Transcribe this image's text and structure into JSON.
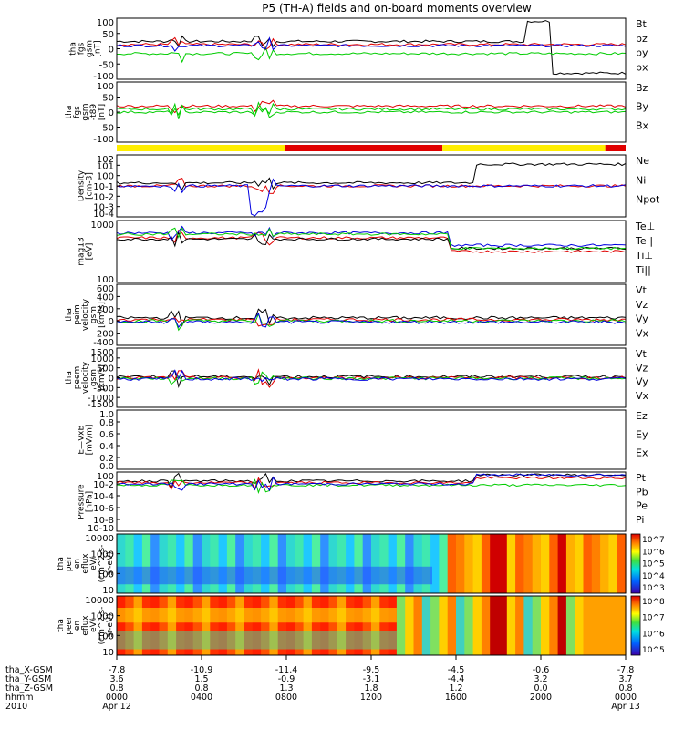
{
  "title": "P5 (TH-A) fields and on-board moments overview",
  "colors": {
    "black": "#000000",
    "red": "#e00000",
    "green": "#00cc00",
    "blue": "#0000e0",
    "yellow": "#ffee00"
  },
  "chart_data": [
    {
      "type": "line",
      "id": "p1",
      "ylabel": [
        "tha",
        "fgs",
        "gsm",
        "[nT]"
      ],
      "yticks": [
        "100",
        "50",
        "0",
        "-50",
        "-100"
      ],
      "ylim": [
        -100,
        100
      ],
      "legend": [
        {
          "name": "Bt",
          "color": "black"
        },
        {
          "name": "bz",
          "color": "red"
        },
        {
          "name": "by",
          "color": "green"
        },
        {
          "name": "bx",
          "color": "blue"
        }
      ]
    },
    {
      "type": "line",
      "id": "p2",
      "ylabel": [
        "tha",
        "fgs",
        "gsm",
        "-t89",
        "[nT]"
      ],
      "yticks": [
        "100",
        "50",
        "0",
        "-50",
        "-100"
      ],
      "ylim": [
        -100,
        100
      ],
      "legend": [
        {
          "name": "Bz",
          "color": "red"
        },
        {
          "name": "By",
          "color": "green"
        },
        {
          "name": "Bx",
          "color": "green"
        }
      ]
    },
    {
      "type": "bar",
      "id": "status-bar",
      "colors_sequence": [
        "yellow",
        "red",
        "yellow",
        "red"
      ]
    },
    {
      "type": "line",
      "id": "p3",
      "ylabel": [
        "Density",
        "[cm-3]"
      ],
      "yticks": [
        "10^2",
        "10^1",
        "10^0",
        "10^-1",
        "10^-2",
        "10^-3",
        "10^-4"
      ],
      "log": true,
      "legend": [
        {
          "name": "Ne",
          "color": "red"
        },
        {
          "name": "Ni",
          "color": "black"
        },
        {
          "name": "Npot",
          "color": "blue"
        }
      ]
    },
    {
      "type": "line",
      "id": "p4",
      "ylabel": [
        "mag13",
        "[eV]"
      ],
      "yticks": [
        "1000",
        "100"
      ],
      "log": true,
      "legend": [
        {
          "name": "Te⊥",
          "color": "red"
        },
        {
          "name": "Te||",
          "color": "black"
        },
        {
          "name": "Ti⊥",
          "color": "blue"
        },
        {
          "name": "Ti||",
          "color": "green"
        }
      ]
    },
    {
      "type": "line",
      "id": "p5",
      "ylabel": [
        "tha",
        "peim",
        "velocity",
        "gsm",
        "[km/s]"
      ],
      "yticks": [
        "600",
        "400",
        "200",
        "0",
        "-200",
        "-400"
      ],
      "ylim": [
        -400,
        600
      ],
      "legend": [
        {
          "name": "Vt",
          "color": "black"
        },
        {
          "name": "Vz",
          "color": "red"
        },
        {
          "name": "Vy",
          "color": "green"
        },
        {
          "name": "Vx",
          "color": "blue"
        }
      ]
    },
    {
      "type": "line",
      "id": "p6",
      "ylabel": [
        "tha",
        "peem",
        "velocity",
        "gsm",
        "[km/s]"
      ],
      "yticks": [
        "1500",
        "1000",
        "500",
        "0",
        "-500",
        "-1000",
        "-1500"
      ],
      "ylim": [
        -1500,
        1500
      ],
      "legend": [
        {
          "name": "Vt",
          "color": "black"
        },
        {
          "name": "Vz",
          "color": "red"
        },
        {
          "name": "Vy",
          "color": "green"
        },
        {
          "name": "Vx",
          "color": "blue"
        }
      ]
    },
    {
      "type": "line",
      "id": "p7",
      "ylabel": [
        "E—VxB",
        "[mV/m]"
      ],
      "yticks": [
        "1.0",
        "0.8",
        "0.6",
        "0.4",
        "0.2",
        "0.0"
      ],
      "ylim": [
        0,
        1
      ],
      "legend": [
        {
          "name": "Ez",
          "color": "red"
        },
        {
          "name": "Ey",
          "color": "green"
        },
        {
          "name": "Ex",
          "color": "blue"
        }
      ]
    },
    {
      "type": "line",
      "id": "p8",
      "ylabel": [
        "Pressure",
        "[nPa]"
      ],
      "yticks": [
        "10^0",
        "10^-2",
        "10^-4",
        "10^-6",
        "10^-8",
        "10^-10"
      ],
      "log": true,
      "legend": [
        {
          "name": "Pt",
          "color": "black"
        },
        {
          "name": "Pb",
          "color": "red"
        },
        {
          "name": "Pe",
          "color": "green"
        },
        {
          "name": "Pi",
          "color": "blue"
        }
      ]
    },
    {
      "type": "heatmap",
      "id": "p9",
      "ylabel": [
        "tha",
        "peir",
        "en",
        "eflux",
        "eV/",
        "(cm^2-s-",
        "sr-eV)"
      ],
      "yticks": [
        "10000",
        "1000",
        "100",
        "10"
      ],
      "colorbar_ticks": [
        "10^7",
        "10^6",
        "10^5",
        "10^4",
        "10^3"
      ]
    },
    {
      "type": "heatmap",
      "id": "p10",
      "ylabel": [
        "tha",
        "peer",
        "en",
        "eflux",
        "eV/",
        "(cm^2-s-",
        "sr-eV)"
      ],
      "yticks": [
        "10000",
        "1000",
        "100",
        "10"
      ],
      "colorbar_ticks": [
        "10^8",
        "10^7",
        "10^6",
        "10^5"
      ]
    }
  ],
  "xaxis": {
    "row_labels": [
      "tha_X-GSM",
      "tha_Y-GSM",
      "tha_Z-GSM",
      "hhmm",
      "2010"
    ],
    "ticks": [
      {
        "rows": [
          "-7.8",
          "3.6",
          "0.8",
          "0000",
          "Apr 12"
        ]
      },
      {
        "rows": [
          "-10.9",
          "1.5",
          "0.8",
          "0400",
          ""
        ]
      },
      {
        "rows": [
          "-11.4",
          "-0.9",
          "1.3",
          "0800",
          ""
        ]
      },
      {
        "rows": [
          "-9.5",
          "-3.1",
          "1.8",
          "1200",
          ""
        ]
      },
      {
        "rows": [
          "-4.5",
          "-4.4",
          "1.2",
          "1600",
          ""
        ]
      },
      {
        "rows": [
          "-0.6",
          "3.2",
          "0.0",
          "2000",
          ""
        ]
      },
      {
        "rows": [
          "-7.8",
          "3.7",
          "0.8",
          "0000",
          "Apr 13"
        ]
      }
    ]
  }
}
